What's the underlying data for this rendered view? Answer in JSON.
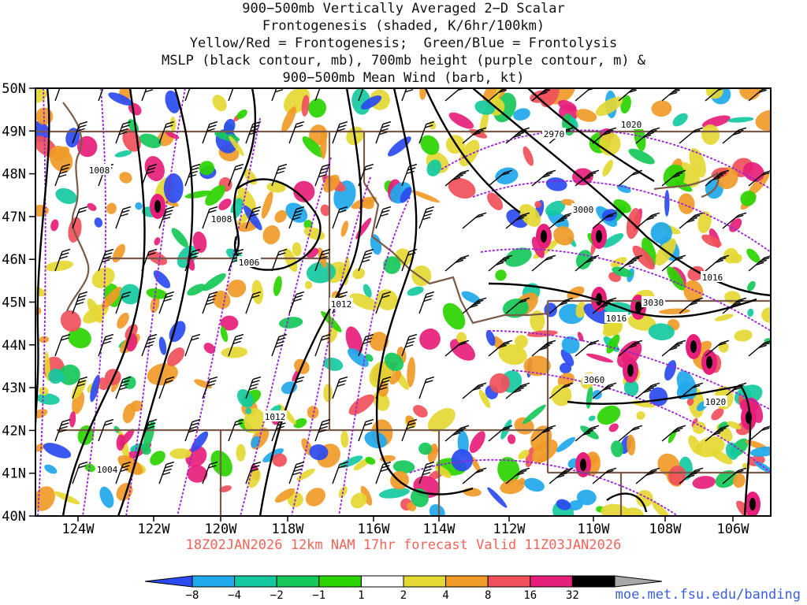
{
  "title": {
    "lines": [
      "900−500mb Vertically Averaged 2−D Scalar",
      "Frontogenesis (shaded, K/6hr/100km)",
      "Yellow/Red = Frontogenesis;  Green/Blue = Frontolysis",
      "MSLP (black contour, mb), 700mb height (purple contour, m) &",
      "900−500mb Mean Wind (barb, kt)"
    ]
  },
  "map": {
    "lat_ticks": [
      "50N",
      "49N",
      "48N",
      "47N",
      "46N",
      "45N",
      "44N",
      "43N",
      "42N",
      "41N",
      "40N"
    ],
    "lon_ticks": [
      "124W",
      "122W",
      "120W",
      "118W",
      "116W",
      "114W",
      "112W",
      "110W",
      "108W",
      "106W"
    ],
    "mslp_labels": [
      "1020",
      "1008",
      "1008",
      "1006",
      "1012",
      "1012",
      "1004",
      "1016",
      "1016",
      "1020"
    ],
    "height_labels": [
      "2970",
      "3000",
      "3030",
      "3060"
    ]
  },
  "valid_line": "18Z02JAN2026 12km NAM 17hr forecast Valid 11Z03JAN2026",
  "colorbar": {
    "labels": [
      "−8",
      "−4",
      "−2",
      "−1",
      "1",
      "2",
      "4",
      "8",
      "16",
      "32"
    ],
    "colors": [
      "#2a4bf0",
      "#1fa8ec",
      "#14c9a0",
      "#16c85a",
      "#2ad400",
      "#ffffff",
      "#e4d832",
      "#f09a28",
      "#f0505a",
      "#e6207a",
      "#000000",
      "#a8a8a8"
    ]
  },
  "site": "moe.met.fsu.edu/banding",
  "colors": {
    "mslp": "#000000",
    "height": "#9a1fd8",
    "border": "#7a5a48",
    "valid_text": "#f0645a",
    "site_text": "#3a5ed8"
  }
}
